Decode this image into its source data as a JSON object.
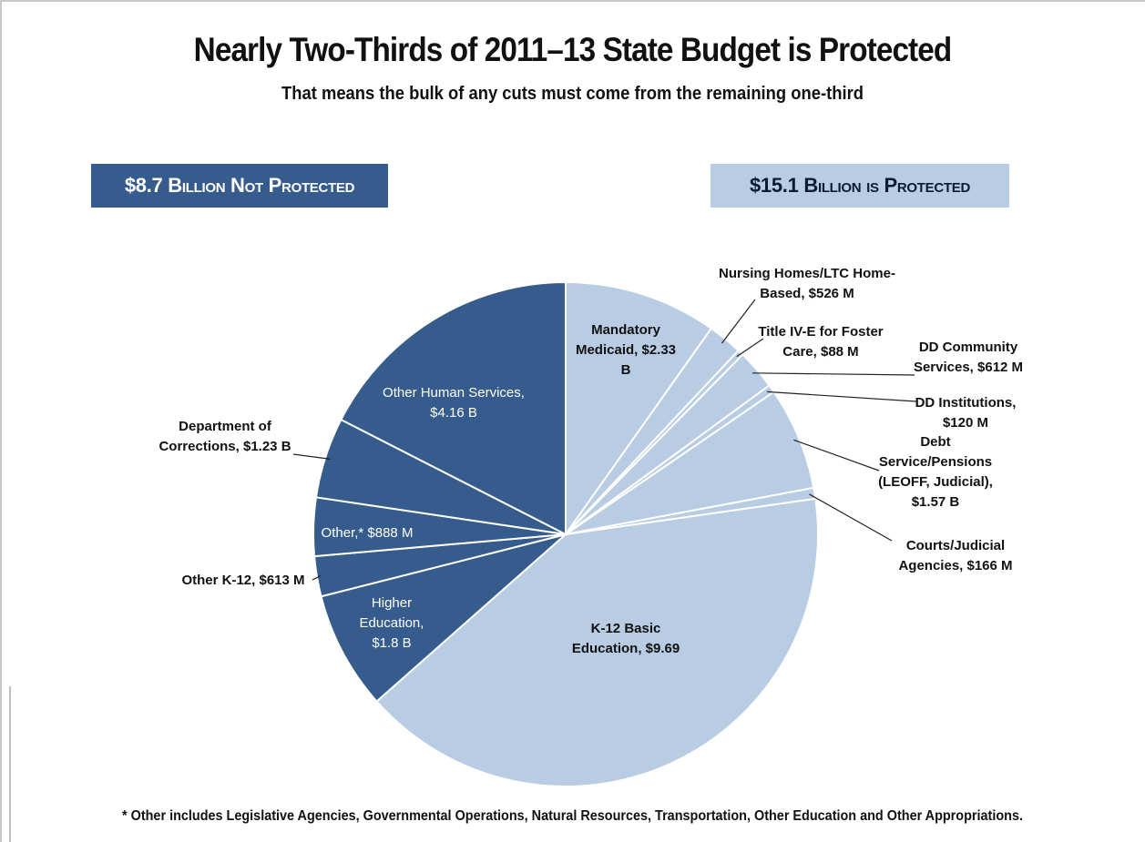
{
  "chart_data": {
    "type": "pie",
    "title": "Nearly Two-Thirds of 2011–13 State Budget is Protected",
    "subtitle": "That means the bulk of any cuts must come from the remaining one-third",
    "groups": [
      {
        "name": "$8.7 Billion Not Protected",
        "color": "#365c8d"
      },
      {
        "name": "$15.1 Billion is Protected",
        "color": "#b8cce4"
      }
    ],
    "slices": [
      {
        "label": "Mandatory Medicaid, $2.33 B",
        "value": 2.33,
        "group": 1
      },
      {
        "label": "Nursing Homes/LTC Home-Based, $526 M",
        "value": 0.526,
        "group": 1
      },
      {
        "label": "Title IV-E for Foster Care, $88 M",
        "value": 0.088,
        "group": 1
      },
      {
        "label": "DD Community Services, $612 M",
        "value": 0.612,
        "group": 1
      },
      {
        "label": "DD Institutions, $120 M",
        "value": 0.12,
        "group": 1
      },
      {
        "label": "Debt Service/Pensions (LEOFF, Judicial), $1.57 B",
        "value": 1.57,
        "group": 1
      },
      {
        "label": "Courts/Judicial Agencies, $166 M",
        "value": 0.166,
        "group": 1
      },
      {
        "label": "K-12 Basic Education, $9.69",
        "value": 9.69,
        "group": 1
      },
      {
        "label": "Higher Education, $1.8 B",
        "value": 1.8,
        "group": 0
      },
      {
        "label": "Other K-12, $613 M",
        "value": 0.613,
        "group": 0
      },
      {
        "label": "Other,* $888 M",
        "value": 0.888,
        "group": 0
      },
      {
        "label": "Department of Corrections, $1.23 B",
        "value": 1.23,
        "group": 0
      },
      {
        "label": "Other Human Services, $4.16 B",
        "value": 4.16,
        "group": 0
      }
    ]
  },
  "slice_labels": [
    {
      "lines": [
        "Mandatory",
        "Medicaid, $2.33",
        "B"
      ]
    },
    {
      "lines": [
        "Nursing Homes/LTC Home-",
        "Based, $526 M"
      ]
    },
    {
      "lines": [
        "Title IV-E for Foster",
        "Care, $88 M"
      ]
    },
    {
      "lines": [
        "DD Community",
        "Services, $612 M"
      ]
    },
    {
      "lines": [
        "DD Institutions,",
        "$120 M"
      ]
    },
    {
      "lines": [
        "Debt",
        "Service/Pensions",
        "(LEOFF, Judicial),",
        "$1.57 B"
      ]
    },
    {
      "lines": [
        "Courts/Judicial",
        "Agencies, $166 M"
      ]
    },
    {
      "lines": [
        "K-12 Basic",
        "Education,  $9.69"
      ]
    },
    {
      "lines": [
        "Higher",
        "Education,",
        "$1.8 B"
      ]
    },
    {
      "lines": [
        "Other K-12, $613 M"
      ]
    },
    {
      "lines": [
        "Other,* $888 M"
      ]
    },
    {
      "lines": [
        "Department of",
        "Corrections, $1.23 B"
      ]
    },
    {
      "lines": [
        "Other Human Services,",
        "$4.16 B"
      ]
    }
  ],
  "badges": {
    "not_protected": "$8.7 Billion Not Protected",
    "protected": "$15.1 Billion is Protected"
  },
  "footnote": "* Other includes Legislative Agencies, Governmental Operations, Natural Resources, Transportation, Other Education and Other Appropriations."
}
